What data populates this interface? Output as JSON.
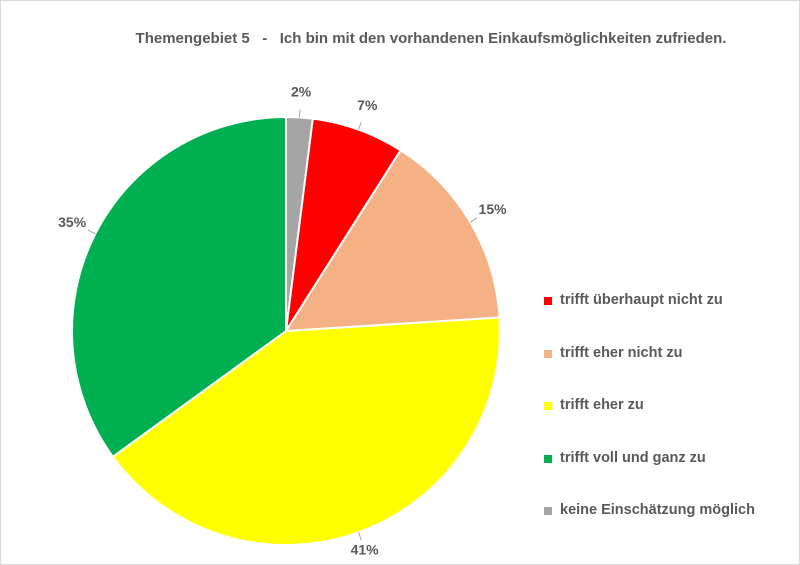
{
  "chart_data": {
    "type": "pie",
    "title": "Themengebiet 5   -   Ich bin mit den vorhandenen Einkaufsmöglichkeiten zufrieden.",
    "categories": [
      "trifft überhaupt nicht zu",
      "trifft eher nicht zu",
      "trifft eher zu",
      "trifft voll und ganz zu",
      "keine Einschätzung möglich"
    ],
    "values": [
      7,
      15,
      41,
      35,
      2
    ],
    "labels": [
      "7%",
      "15%",
      "41%",
      "35%",
      "2%"
    ],
    "colors": [
      "#ff0000",
      "#f4b183",
      "#ffff00",
      "#00b050",
      "#a5a5a5"
    ],
    "draw_order": [
      4,
      0,
      1,
      2,
      3
    ],
    "start": "12 o'clock, clockwise",
    "legend_position": "right"
  }
}
